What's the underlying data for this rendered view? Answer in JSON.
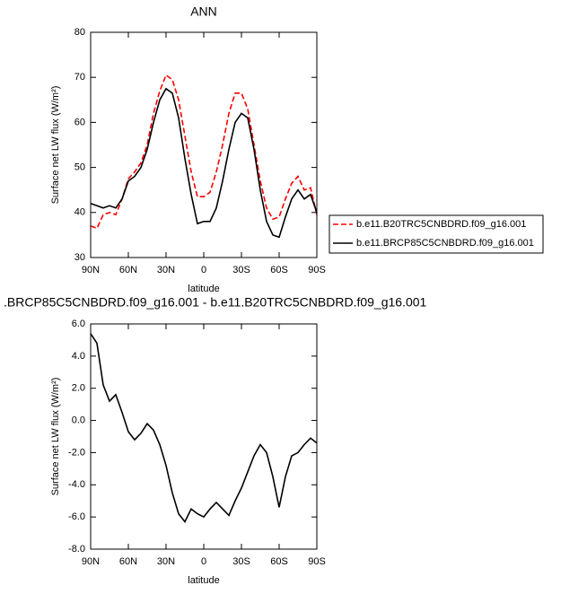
{
  "chart_data": [
    {
      "type": "line",
      "title": "ANN",
      "x_label": "latitude",
      "y_label": "Surface net LW flux (W/m²)",
      "x": [
        90,
        85,
        80,
        75,
        70,
        65,
        60,
        55,
        50,
        45,
        40,
        35,
        30,
        25,
        20,
        15,
        10,
        5,
        0,
        -5,
        -10,
        -15,
        -20,
        -25,
        -30,
        -35,
        -40,
        -45,
        -50,
        -55,
        -60,
        -65,
        -70,
        -75,
        -80,
        -85,
        -90
      ],
      "series": [
        {
          "name": "b.e11.B20TRC5CNBDRD.f09_g16.001",
          "color": "#ff0000",
          "line_style": "dashed",
          "values": [
            37,
            36.5,
            39.5,
            40,
            39.5,
            43,
            47.5,
            49,
            51,
            55,
            62,
            67,
            70.5,
            69.5,
            65,
            57,
            49,
            43.5,
            43.5,
            44.5,
            49,
            55,
            62,
            66.5,
            66.5,
            63,
            55,
            47,
            41,
            38.5,
            39,
            43,
            46.5,
            48,
            45,
            45.5,
            39.5
          ]
        },
        {
          "name": "b.e11.BRCP85C5CNBDRD.f09_g16.001",
          "color": "#000000",
          "line_style": "solid",
          "values": [
            42,
            41.5,
            41,
            41.5,
            41,
            43,
            47,
            48,
            50,
            54,
            60,
            65,
            67.5,
            66.5,
            61,
            52,
            44,
            37.5,
            38,
            38,
            41,
            47,
            54,
            60,
            62,
            61,
            54,
            45,
            38,
            35,
            34.5,
            39,
            43,
            45,
            43,
            44,
            40
          ]
        }
      ],
      "xlim": [
        90,
        -90
      ],
      "xticks": [
        {
          "value": 90,
          "label": "90N"
        },
        {
          "value": 60,
          "label": "60N"
        },
        {
          "value": 30,
          "label": "30N"
        },
        0,
        {
          "value": -30,
          "label": "30S"
        },
        {
          "value": -60,
          "label": "60S"
        },
        {
          "value": -90,
          "label": "90S"
        }
      ],
      "ylim": [
        30,
        80
      ],
      "yticks": [
        30,
        40,
        50,
        60,
        70,
        80
      ]
    },
    {
      "type": "line",
      "title": ".BRCP85C5CNBDRD.f09_g16.001 - b.e11.B20TRC5CNBDRD.f09_g16.001",
      "x_label": "latitude",
      "y_label": "Surface net LW flux (W/m²)",
      "x": [
        90,
        85,
        80,
        75,
        70,
        65,
        60,
        55,
        50,
        45,
        40,
        35,
        30,
        25,
        20,
        15,
        10,
        5,
        0,
        -5,
        -10,
        -15,
        -20,
        -25,
        -30,
        -35,
        -40,
        -45,
        -50,
        -55,
        -60,
        -65,
        -70,
        -75,
        -80,
        -85,
        -90
      ],
      "series": [
        {
          "color": "#000000",
          "line_style": "solid",
          "values": [
            5.4,
            4.8,
            2.2,
            1.2,
            1.6,
            0.5,
            -0.7,
            -1.2,
            -0.8,
            -0.2,
            -0.6,
            -1.5,
            -2.8,
            -4.5,
            -5.8,
            -6.3,
            -5.5,
            -5.8,
            -6.0,
            -5.5,
            -5.1,
            -5.5,
            -5.9,
            -5.0,
            -4.2,
            -3.2,
            -2.2,
            -1.5,
            -2.0,
            -3.5,
            -5.4,
            -3.5,
            -2.2,
            -2.0,
            -1.5,
            -1.1,
            -1.4
          ]
        }
      ],
      "xlim": [
        90,
        -90
      ],
      "xticks": [
        {
          "value": 90,
          "label": "90N"
        },
        {
          "value": 60,
          "label": "60N"
        },
        {
          "value": 30,
          "label": "30N"
        },
        0,
        {
          "value": -30,
          "label": "30S"
        },
        {
          "value": -60,
          "label": "60S"
        },
        {
          "value": -90,
          "label": "90S"
        }
      ],
      "ylim": [
        -8,
        6
      ],
      "yticks": [
        {
          "value": -8,
          "label": "-8.0"
        },
        {
          "value": -6,
          "label": "-6.0"
        },
        {
          "value": -4,
          "label": "-4.0"
        },
        {
          "value": -2,
          "label": "-2.0"
        },
        {
          "value": 0,
          "label": "0.0"
        },
        {
          "value": 2,
          "label": "2.0"
        },
        {
          "value": 4,
          "label": "4.0"
        },
        {
          "value": 6,
          "label": "6.0"
        }
      ]
    }
  ]
}
